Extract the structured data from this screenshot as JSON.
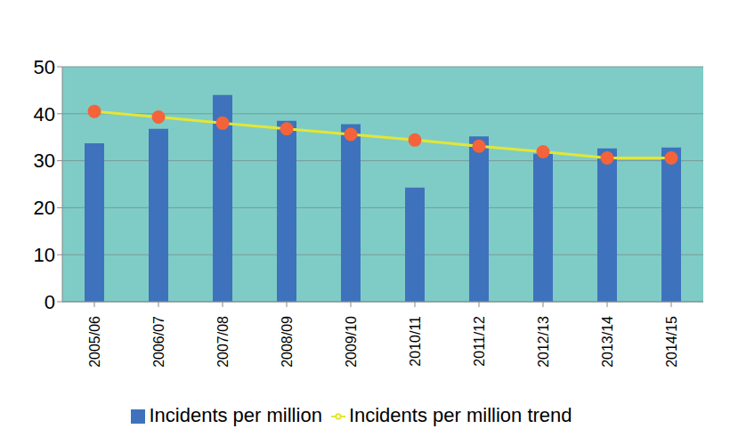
{
  "chart_data": {
    "type": "bar",
    "categories": [
      "2005/06",
      "2006/07",
      "2007/08",
      "2008/09",
      "2009/10",
      "2010/11",
      "2011/12",
      "2012/13",
      "2013/14",
      "2014/15"
    ],
    "series": [
      {
        "name": "Incidents per million",
        "type": "bar",
        "color": "#3f72bd",
        "values": [
          33.7,
          36.8,
          44,
          38.5,
          37.8,
          24.3,
          35.2,
          31.5,
          32.6,
          32.8
        ]
      },
      {
        "name": "Incidents per million trend",
        "type": "line",
        "color": "#e3e636",
        "marker": "circle",
        "values": [
          40.5,
          39.3,
          38,
          36.8,
          35.6,
          34.4,
          33.1,
          31.9,
          30.6,
          30.6
        ]
      }
    ],
    "ylim": [
      0,
      50
    ],
    "yticks": [
      0,
      10,
      20,
      30,
      40,
      50
    ],
    "grid": true,
    "legend": "bottom"
  }
}
